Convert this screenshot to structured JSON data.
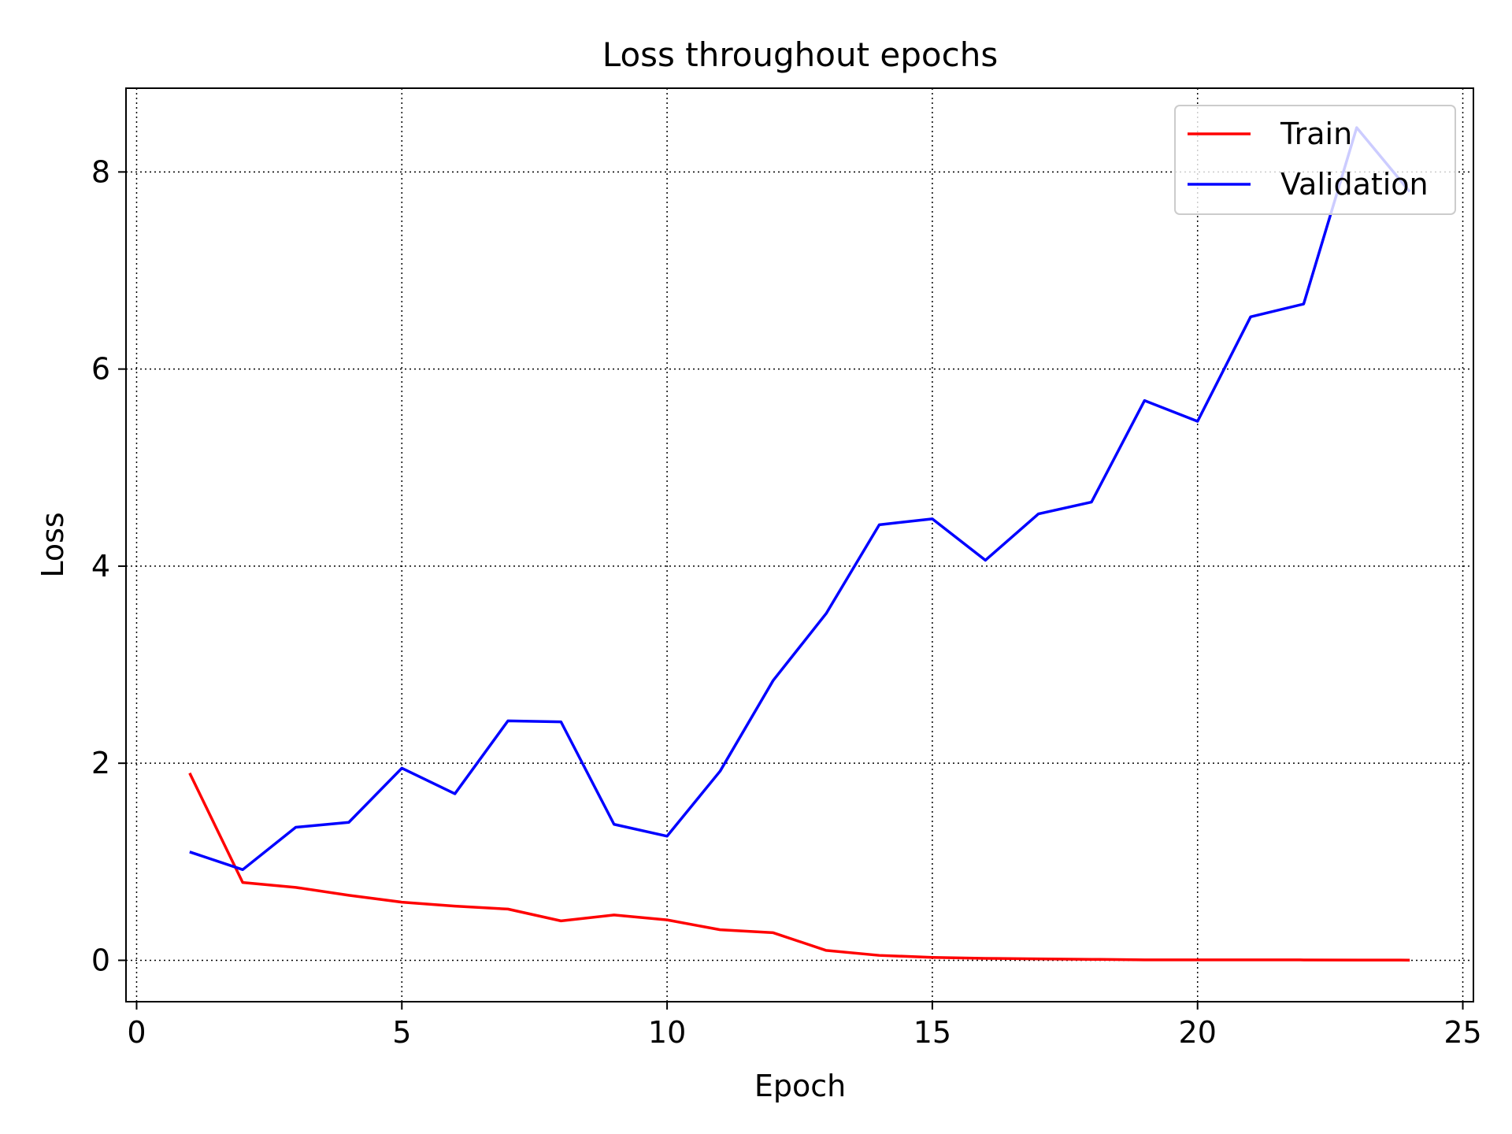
{
  "chart_data": {
    "type": "line",
    "title": "Loss throughout epochs",
    "xlabel": "Epoch",
    "ylabel": "Loss",
    "xlim": [
      -0.2,
      25.2
    ],
    "ylim": [
      -0.42,
      8.85
    ],
    "xticks": [
      0,
      5,
      10,
      15,
      20,
      25
    ],
    "yticks": [
      0,
      2,
      4,
      6,
      8
    ],
    "grid": true,
    "legend_position": "top-right",
    "x": [
      1,
      2,
      3,
      4,
      5,
      6,
      7,
      8,
      9,
      10,
      11,
      12,
      13,
      14,
      15,
      16,
      17,
      18,
      19,
      20,
      21,
      22,
      23,
      24
    ],
    "series": [
      {
        "name": "Train",
        "color": "#ff0000",
        "values": [
          1.9,
          0.79,
          0.74,
          0.66,
          0.59,
          0.55,
          0.52,
          0.4,
          0.46,
          0.41,
          0.31,
          0.28,
          0.1,
          0.05,
          0.03,
          0.02,
          0.015,
          0.01,
          0.005,
          0.005,
          0.005,
          0.004,
          0.003,
          0.002
        ]
      },
      {
        "name": "Validation",
        "color": "#0000ff",
        "values": [
          1.1,
          0.92,
          1.35,
          1.4,
          1.95,
          1.69,
          2.43,
          2.42,
          1.38,
          1.26,
          1.92,
          2.84,
          3.52,
          4.42,
          4.48,
          4.06,
          4.53,
          4.65,
          5.68,
          5.47,
          6.53,
          6.66,
          8.45,
          7.8
        ]
      }
    ]
  }
}
